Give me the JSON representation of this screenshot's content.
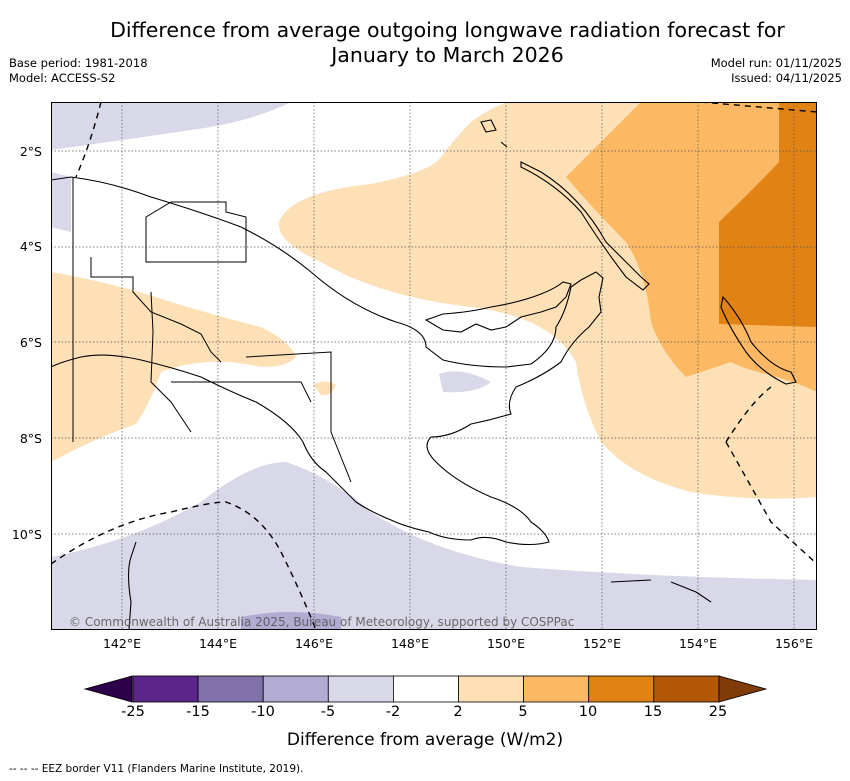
{
  "title_line1": "Difference from average outgoing longwave radiation forecast for",
  "title_line2": "January to March 2026",
  "base_period": "Base period: 1981-2018",
  "model": "Model: ACCESS-S2",
  "model_run": "Model run: 01/11/2025",
  "issued": "Issued: 04/11/2025",
  "copyright": "© Commonwealth of Australia 2025, Bureau of Meteorology, supported by COSPPac",
  "lat_labels": [
    "2°S",
    "4°S",
    "6°S",
    "8°S",
    "10°S"
  ],
  "lon_labels": [
    "142°E",
    "144°E",
    "146°E",
    "148°E",
    "150°E",
    "152°E",
    "154°E",
    "156°E"
  ],
  "colorbar": {
    "title": "Difference from average (W/m2)",
    "ticks": [
      "-25",
      "-15",
      "-10",
      "-5",
      "-2",
      "2",
      "5",
      "10",
      "15",
      "25"
    ],
    "colors": [
      "#5b2589",
      "#8171aa",
      "#b2abd2",
      "#d8d8e8",
      "#ffffff",
      "#fee0b6",
      "#fdb863",
      "#e08214",
      "#b35806"
    ],
    "under_color": "#2d004b",
    "over_color": "#7f3b08"
  },
  "footnote": "-- -- -- EEZ border V11 (Flanders Marine Institute, 2019)."
}
